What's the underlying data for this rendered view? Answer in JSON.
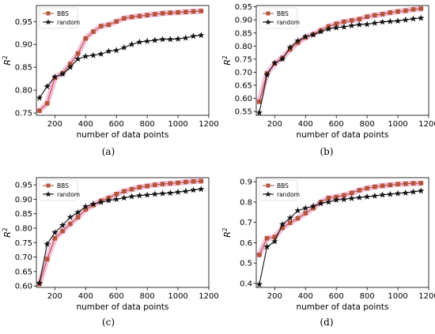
{
  "figure": {
    "series_colors": {
      "BBS": "#b5553a",
      "random": "#111111",
      "bbs_band": "#f2b6d8"
    }
  },
  "chart_data": [
    {
      "type": "line",
      "panel_label": "(a)",
      "xlabel": "number of data points",
      "ylabel": "R",
      "ylabel_superscript": "2",
      "xlim": [
        80,
        1200
      ],
      "ylim": [
        0.745,
        0.985
      ],
      "xticks": [
        200,
        400,
        600,
        800,
        1000,
        1200
      ],
      "yticks": [
        0.75,
        0.8,
        0.85,
        0.9,
        0.95
      ],
      "ytick_labels": [
        "0.75",
        "0.80",
        "0.85",
        "0.90",
        "0.95"
      ],
      "legend": "top-left",
      "x": [
        100,
        150,
        200,
        250,
        300,
        350,
        400,
        450,
        500,
        550,
        600,
        650,
        700,
        750,
        800,
        850,
        900,
        950,
        1000,
        1050,
        1100,
        1150
      ],
      "series": [
        {
          "name": "BBS",
          "marker": "square",
          "values": [
            0.755,
            0.771,
            0.827,
            0.837,
            0.857,
            0.88,
            0.913,
            0.928,
            0.94,
            0.943,
            0.95,
            0.957,
            0.96,
            0.962,
            0.964,
            0.966,
            0.968,
            0.969,
            0.97,
            0.971,
            0.972,
            0.973
          ]
        },
        {
          "name": "random",
          "marker": "star",
          "values": [
            0.783,
            0.808,
            0.829,
            0.835,
            0.85,
            0.868,
            0.874,
            0.876,
            0.879,
            0.885,
            0.887,
            0.893,
            0.9,
            0.905,
            0.907,
            0.909,
            0.911,
            0.911,
            0.912,
            0.914,
            0.918,
            0.92
          ]
        }
      ]
    },
    {
      "type": "line",
      "panel_label": "(b)",
      "xlabel": "number of data points",
      "ylabel": "R",
      "ylabel_superscript": "2",
      "xlim": [
        80,
        1200
      ],
      "ylim": [
        0.535,
        0.955
      ],
      "xticks": [
        200,
        400,
        600,
        800,
        1000,
        1200
      ],
      "yticks": [
        0.55,
        0.6,
        0.65,
        0.7,
        0.75,
        0.8,
        0.85,
        0.9,
        0.95
      ],
      "ytick_labels": [
        "0.55",
        "0.60",
        "0.65",
        "0.70",
        "0.75",
        "0.80",
        "0.85",
        "0.90",
        "0.95"
      ],
      "legend": "top-left",
      "x": [
        100,
        150,
        200,
        250,
        300,
        350,
        400,
        450,
        500,
        550,
        600,
        650,
        700,
        750,
        800,
        850,
        900,
        950,
        1000,
        1050,
        1100,
        1150
      ],
      "series": [
        {
          "name": "BBS",
          "marker": "square",
          "values": [
            0.587,
            0.695,
            0.733,
            0.755,
            0.787,
            0.813,
            0.833,
            0.845,
            0.86,
            0.875,
            0.885,
            0.893,
            0.898,
            0.903,
            0.912,
            0.918,
            0.922,
            0.928,
            0.932,
            0.935,
            0.94,
            0.943
          ]
        },
        {
          "name": "random",
          "marker": "star",
          "values": [
            0.545,
            0.69,
            0.735,
            0.75,
            0.795,
            0.82,
            0.836,
            0.843,
            0.855,
            0.865,
            0.87,
            0.873,
            0.878,
            0.882,
            0.883,
            0.888,
            0.892,
            0.894,
            0.896,
            0.9,
            0.904,
            0.907
          ]
        }
      ]
    },
    {
      "type": "line",
      "panel_label": "(c)",
      "xlabel": "number of data points",
      "ylabel": "R",
      "ylabel_superscript": "2",
      "xlim": [
        80,
        1200
      ],
      "ylim": [
        0.595,
        0.975
      ],
      "xticks": [
        200,
        400,
        600,
        800,
        1000,
        1200
      ],
      "yticks": [
        0.6,
        0.65,
        0.7,
        0.75,
        0.8,
        0.85,
        0.9,
        0.95
      ],
      "ytick_labels": [
        "0.60",
        "0.65",
        "0.70",
        "0.75",
        "0.80",
        "0.85",
        "0.90",
        "0.95"
      ],
      "legend": "top-left",
      "x": [
        100,
        150,
        200,
        250,
        300,
        350,
        400,
        450,
        500,
        550,
        600,
        650,
        700,
        750,
        800,
        850,
        900,
        950,
        1000,
        1050,
        1100,
        1150
      ],
      "series": [
        {
          "name": "BBS",
          "marker": "square",
          "values": [
            0.607,
            0.693,
            0.765,
            0.79,
            0.815,
            0.838,
            0.865,
            0.88,
            0.895,
            0.905,
            0.918,
            0.928,
            0.935,
            0.942,
            0.946,
            0.95,
            0.953,
            0.955,
            0.957,
            0.96,
            0.962,
            0.963
          ]
        },
        {
          "name": "random",
          "marker": "star",
          "values": [
            0.61,
            0.745,
            0.785,
            0.81,
            0.838,
            0.855,
            0.875,
            0.884,
            0.89,
            0.896,
            0.9,
            0.905,
            0.91,
            0.913,
            0.915,
            0.918,
            0.92,
            0.922,
            0.925,
            0.928,
            0.932,
            0.935
          ]
        }
      ]
    },
    {
      "type": "line",
      "panel_label": "(d)",
      "xlabel": "number of data points",
      "ylabel": "R",
      "ylabel_superscript": "2",
      "xlim": [
        80,
        1200
      ],
      "ylim": [
        0.38,
        0.92
      ],
      "xticks": [
        200,
        400,
        600,
        800,
        1000,
        1200
      ],
      "yticks": [
        0.4,
        0.5,
        0.6,
        0.7,
        0.8,
        0.9
      ],
      "ytick_labels": [
        "0.4",
        "0.5",
        "0.6",
        "0.7",
        "0.8",
        "0.9"
      ],
      "legend": "top-left",
      "x": [
        100,
        150,
        200,
        250,
        300,
        350,
        400,
        450,
        500,
        550,
        600,
        650,
        700,
        750,
        800,
        850,
        900,
        950,
        1000,
        1050,
        1100,
        1150
      ],
      "series": [
        {
          "name": "BBS",
          "marker": "square",
          "values": [
            0.54,
            0.622,
            0.628,
            0.673,
            0.698,
            0.72,
            0.745,
            0.77,
            0.8,
            0.82,
            0.825,
            0.833,
            0.845,
            0.858,
            0.868,
            0.875,
            0.88,
            0.884,
            0.888,
            0.89,
            0.892,
            0.893
          ]
        },
        {
          "name": "random",
          "marker": "star",
          "values": [
            0.395,
            0.58,
            0.606,
            0.69,
            0.722,
            0.758,
            0.77,
            0.78,
            0.793,
            0.8,
            0.81,
            0.813,
            0.818,
            0.822,
            0.826,
            0.83,
            0.835,
            0.838,
            0.842,
            0.845,
            0.85,
            0.855
          ]
        }
      ]
    }
  ]
}
